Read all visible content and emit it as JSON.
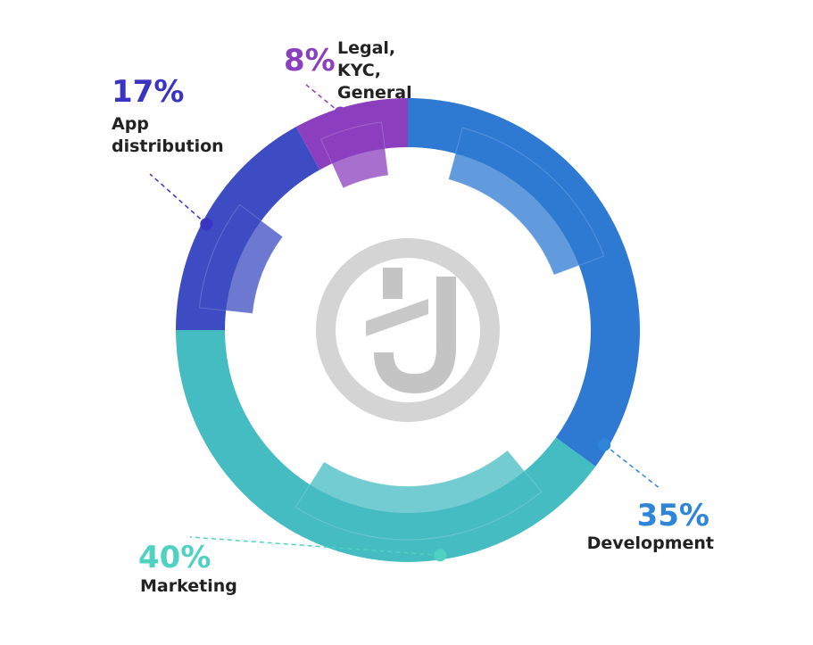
{
  "chart_data": {
    "type": "pie",
    "categories": [
      "Development",
      "Marketing",
      "App distribution",
      "Legal, KYC, General"
    ],
    "values": [
      35,
      40,
      17,
      8
    ],
    "value_labels": [
      "35%",
      "40%",
      "17%",
      "8%"
    ],
    "colors": [
      "#2e7ad2",
      "#44bcc2",
      "#3d4cc2",
      "#8b3fbf"
    ],
    "label_colors": [
      "#2f86d8",
      "#4fd2c2",
      "#3a34c0",
      "#8a3fc0"
    ]
  }
}
